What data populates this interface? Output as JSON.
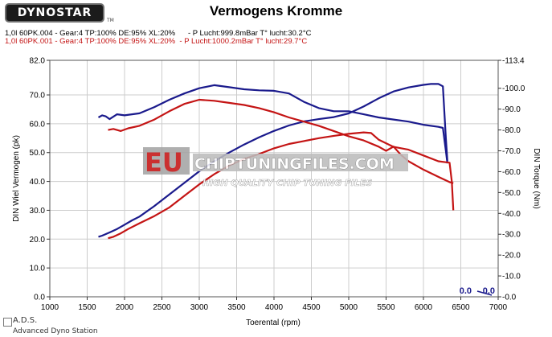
{
  "header": {
    "logo": "DYNOSTAR",
    "tm": "TM",
    "title": "Vermogens Kromme",
    "run1": "1,0l 60PK.004 - Gear:4 TP:100% DE:95% XL:20%      - P Lucht:999.8mBar T° lucht:30.2°C",
    "run2": "1,0l 60PK.001 - Gear:4 TP:100% DE:95% XL:20%  - P Lucht:1000.2mBar T° lucht:29.7°C"
  },
  "watermark": {
    "eu": "EU",
    "site": "CHIPTUNINGFILES.COM",
    "tagline": "HIGH QUALITY CHIP TUNING FILES"
  },
  "footer": {
    "brand": "A.D.S.",
    "sub": "Advanced Dyno Station"
  },
  "colors": {
    "run1": "#1a1a8c",
    "run2": "#c41414",
    "grid": "#cccccc"
  },
  "chart_data": {
    "type": "line",
    "title": "Vermogens Kromme",
    "xlabel": "Toerental (rpm)",
    "ylabel_left": "DIN Wiel Vermogen (pk)",
    "ylabel_right": "DIN Torque (Nm)",
    "xlim": [
      1000,
      7000
    ],
    "ylim_left": [
      0,
      82
    ],
    "ylim_right": [
      0,
      113.4
    ],
    "x_ticks": [
      1000,
      1500,
      2000,
      2500,
      3000,
      3500,
      4000,
      4500,
      5000,
      5500,
      6000,
      6500,
      7000
    ],
    "y_left_ticks": [
      "0.0",
      "10.0",
      "20.0",
      "30.0",
      "40.0",
      "50.0",
      "60.0",
      "70.0",
      "82.0"
    ],
    "y_right_ticks": [
      "-0.0",
      "-10.0",
      "-20.0",
      "-30.0",
      "-40.0",
      "-50.0",
      "-60.0",
      "-70.0",
      "-80.0",
      "-90.0",
      "-100.0",
      "-113.4"
    ],
    "cursor_readout": {
      "left": "0.0",
      "right": "0.0"
    },
    "grid": true,
    "series": [
      {
        "name": "1,0l 60PK.004 Vermogen",
        "axis": "left",
        "color": "#1a1a8c",
        "x": [
          1650,
          1700,
          1800,
          1900,
          2000,
          2100,
          2200,
          2400,
          2600,
          2800,
          3000,
          3200,
          3400,
          3600,
          3800,
          4000,
          4200,
          4400,
          4600,
          4800,
          5000,
          5200,
          5400,
          5600,
          5800,
          6000,
          6100,
          6200,
          6260,
          6300,
          6320
        ],
        "y": [
          20.8,
          21.2,
          22.3,
          23.5,
          25.0,
          26.5,
          27.8,
          31.5,
          35.5,
          39.5,
          43.5,
          47.0,
          50.0,
          52.8,
          55.3,
          57.5,
          59.4,
          60.8,
          61.6,
          62.3,
          63.6,
          66.0,
          68.8,
          71.2,
          72.6,
          73.5,
          73.8,
          73.8,
          73.0,
          55.0,
          47.0
        ]
      },
      {
        "name": "1,0l 60PK.004 Torque",
        "axis": "right",
        "color": "#1a1a8c",
        "x": [
          1650,
          1700,
          1750,
          1800,
          1900,
          2000,
          2200,
          2400,
          2600,
          2800,
          3000,
          3200,
          3400,
          3600,
          3800,
          4000,
          4200,
          4400,
          4600,
          4800,
          5000,
          5200,
          5400,
          5600,
          5800,
          6000,
          6200,
          6260,
          6300,
          6320
        ],
        "y": [
          86.0,
          87.0,
          86.5,
          85.2,
          87.5,
          87.0,
          88.0,
          91.0,
          94.5,
          97.5,
          100.0,
          101.5,
          100.5,
          99.5,
          99.0,
          98.8,
          97.5,
          93.5,
          90.5,
          89.0,
          89.0,
          87.5,
          86.0,
          85.0,
          84.0,
          82.5,
          81.5,
          81.0,
          70.0,
          64.0
        ]
      },
      {
        "name": "1,0l 60PK.001 Vermogen",
        "axis": "left",
        "color": "#c41414",
        "x": [
          1780,
          1850,
          1950,
          2050,
          2200,
          2400,
          2600,
          2800,
          3000,
          3200,
          3400,
          3600,
          3800,
          4000,
          4200,
          4400,
          4600,
          4800,
          5000,
          5200,
          5300,
          5400,
          5600,
          5800,
          6000,
          6200,
          6350,
          6380,
          6400
        ],
        "y": [
          20.3,
          20.8,
          22.0,
          23.5,
          25.5,
          28.0,
          31.0,
          35.0,
          39.0,
          42.5,
          45.5,
          47.8,
          49.5,
          51.5,
          53.0,
          54.0,
          55.0,
          55.8,
          56.5,
          57.0,
          56.8,
          54.5,
          52.0,
          51.0,
          49.0,
          47.0,
          46.5,
          40.0,
          30.0
        ]
      },
      {
        "name": "1,0l 60PK.001 Torque",
        "axis": "right",
        "color": "#c41414",
        "x": [
          1780,
          1850,
          1950,
          2050,
          2200,
          2400,
          2600,
          2800,
          3000,
          3200,
          3400,
          3600,
          3800,
          4000,
          4200,
          4400,
          4600,
          4800,
          5000,
          5200,
          5400,
          5500,
          5600,
          5700,
          5800,
          6000,
          6200,
          6350,
          6400
        ],
        "y": [
          80.0,
          80.5,
          79.5,
          80.8,
          82.0,
          85.0,
          89.0,
          92.5,
          94.5,
          94.0,
          93.0,
          92.0,
          90.5,
          88.5,
          86.0,
          84.0,
          82.0,
          79.5,
          77.0,
          75.0,
          72.0,
          70.0,
          72.0,
          68.0,
          65.0,
          61.0,
          57.5,
          55.0,
          54.5
        ]
      }
    ]
  }
}
